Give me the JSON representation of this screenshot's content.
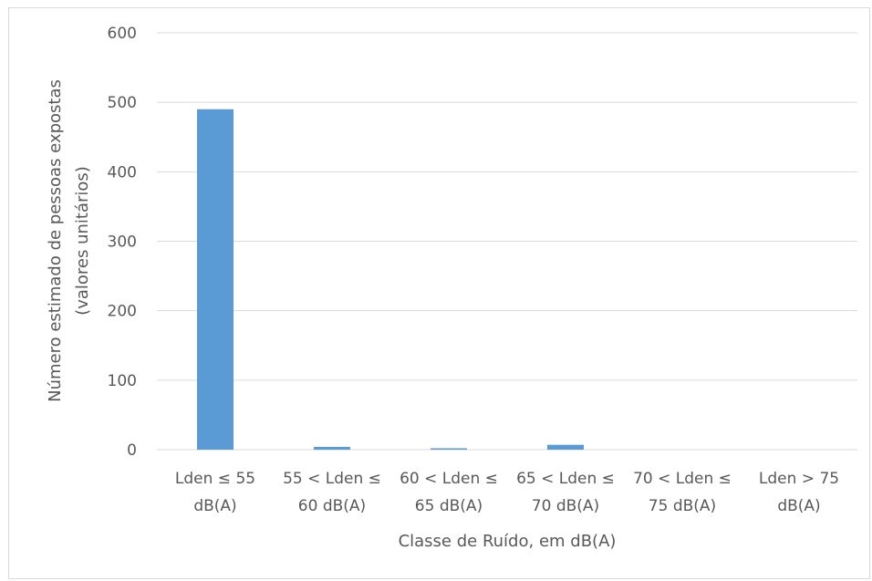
{
  "chart_data": {
    "type": "bar",
    "title": "",
    "xlabel": "Classe de Ruído, em dB(A)",
    "ylabel_lines": [
      "Número estimado de pessoas expostas",
      "(valores unitários)"
    ],
    "categories": [
      [
        "Lden ≤ 55",
        "dB(A)"
      ],
      [
        "55 < Lden ≤",
        "60 dB(A)"
      ],
      [
        "60 < Lden ≤",
        "65 dB(A)"
      ],
      [
        "65 < Lden ≤",
        "70 dB(A)"
      ],
      [
        "70 < Lden ≤",
        "75 dB(A)"
      ],
      [
        "Lden  > 75",
        "dB(A)"
      ]
    ],
    "values": [
      490,
      4,
      2,
      7,
      0,
      0
    ],
    "ylim": [
      0,
      600
    ],
    "yticks": [
      "0",
      "100",
      "200",
      "300",
      "400",
      "500",
      "600"
    ],
    "grid": true,
    "bar_color": "#5b9bd5",
    "grid_color": "#d9d9d9",
    "text_color": "#595959"
  }
}
